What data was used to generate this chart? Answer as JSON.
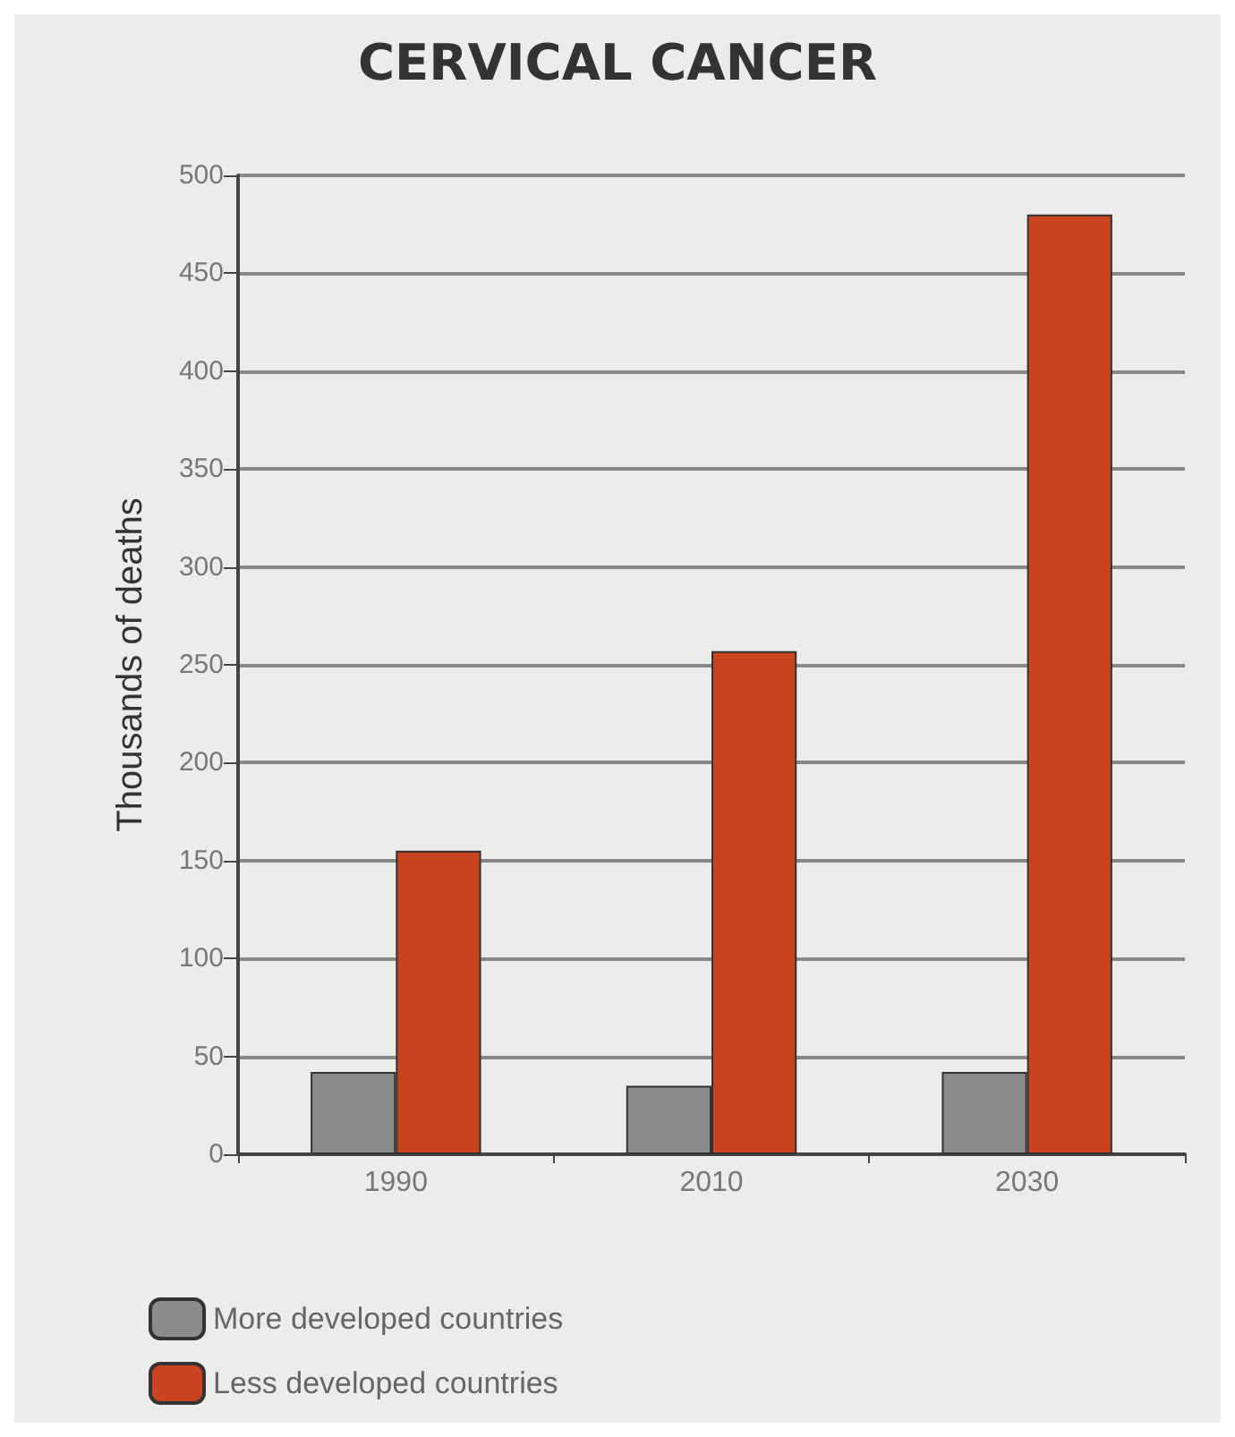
{
  "chart_data": {
    "type": "bar",
    "title": "CERVICAL CANCER",
    "ylabel": "Thousands of deaths",
    "categories": [
      "1990",
      "2010",
      "2030"
    ],
    "series": [
      {
        "name": "More developed countries",
        "color": "#8c8c8c",
        "values": [
          42,
          35,
          42
        ]
      },
      {
        "name": "Less developed countries",
        "color": "#c9431f",
        "values": [
          155,
          257,
          480
        ]
      }
    ],
    "ylim": [
      0,
      500
    ],
    "yticks": [
      0,
      50,
      100,
      150,
      200,
      250,
      300,
      350,
      400,
      450,
      500
    ],
    "grid": "y",
    "legend": "bottom left"
  }
}
